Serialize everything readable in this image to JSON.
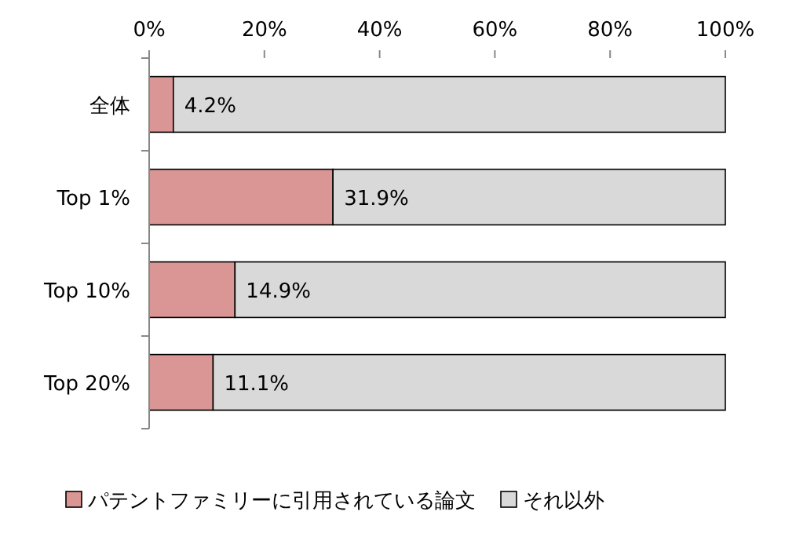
{
  "chart_data": {
    "type": "bar",
    "orientation": "horizontal",
    "stacked": true,
    "categories": [
      "全体",
      "Top 1%",
      "Top 10%",
      "Top 20%"
    ],
    "series": [
      {
        "name": "パテントファミリーに引用されている論文",
        "color": "#d99694",
        "values": [
          4.2,
          31.9,
          14.9,
          11.1
        ],
        "value_labels": [
          "4.2%",
          "31.9%",
          "14.9%",
          "11.1%"
        ]
      },
      {
        "name": "それ以外",
        "color": "#d9d9d9",
        "values": [
          95.8,
          68.1,
          85.1,
          88.9
        ]
      }
    ],
    "xlim": [
      0,
      100
    ],
    "xticks": [
      {
        "value": 0,
        "label": "0%"
      },
      {
        "value": 20,
        "label": "20%"
      },
      {
        "value": 40,
        "label": "40%"
      },
      {
        "value": 60,
        "label": "60%"
      },
      {
        "value": 80,
        "label": "80%"
      },
      {
        "value": 100,
        "label": "100%"
      }
    ],
    "grid": false,
    "legend": "bottom"
  }
}
